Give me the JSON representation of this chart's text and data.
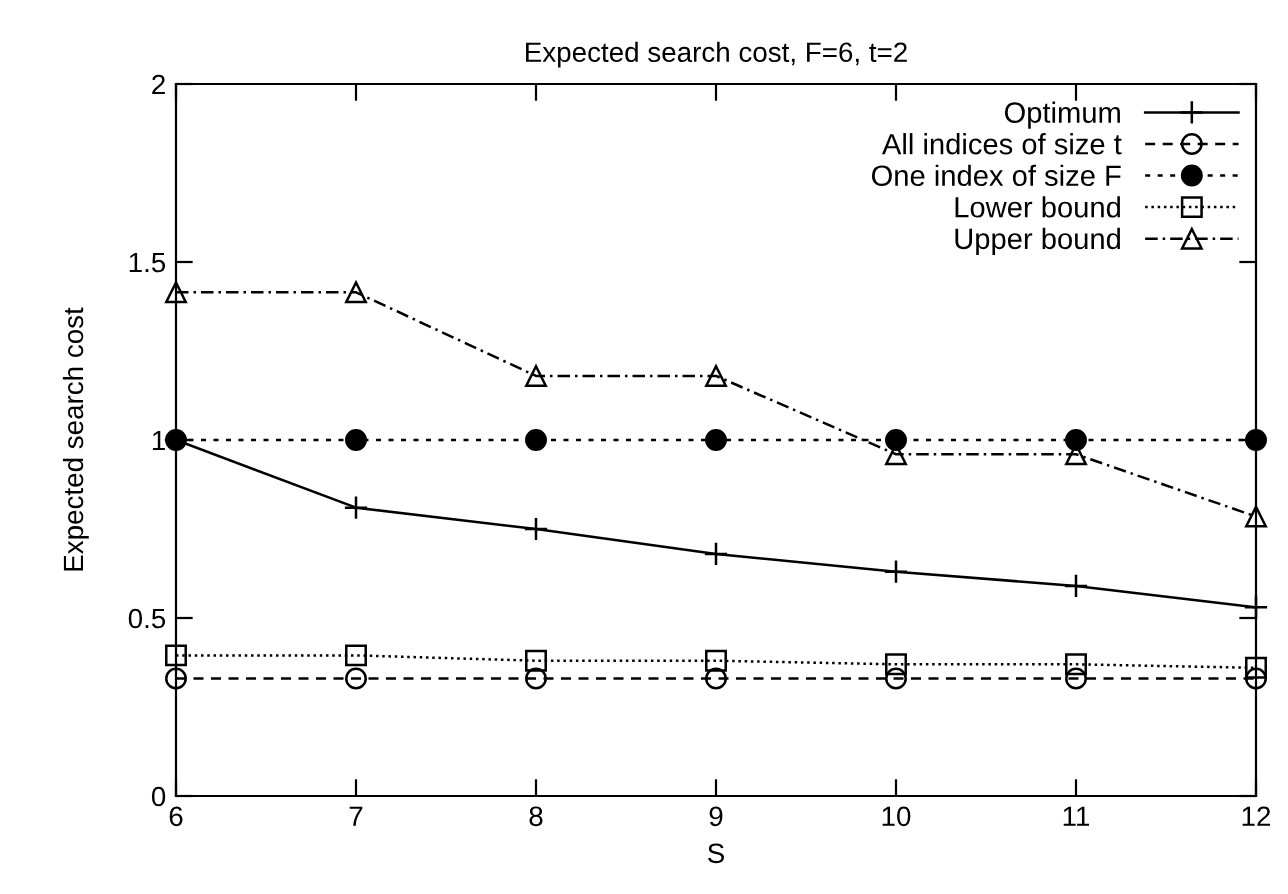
{
  "chart_data": {
    "type": "line",
    "title": "Expected search cost, F=6, t=2",
    "xlabel": "S",
    "ylabel": "Expected search cost",
    "x": [
      6,
      7,
      8,
      9,
      10,
      11,
      12
    ],
    "xlim": [
      6,
      12
    ],
    "xticks": [
      6,
      7,
      8,
      9,
      10,
      11,
      12
    ],
    "ylim": [
      0,
      2
    ],
    "yticks": [
      0,
      0.5,
      1,
      1.5,
      2
    ],
    "grid": false,
    "legend": "top right",
    "series": [
      {
        "name": "Optimum",
        "color": "#000000",
        "marker": "cross",
        "line_style": "solid",
        "values": [
          1.0,
          0.81,
          0.75,
          0.68,
          0.63,
          0.59,
          0.53
        ]
      },
      {
        "name": "All indices of size t",
        "color": "#000000",
        "marker": "circle",
        "line_style": "dashed",
        "values": [
          0.33,
          0.33,
          0.33,
          0.33,
          0.33,
          0.33,
          0.33
        ]
      },
      {
        "name": "One index of size F",
        "color": "#000000",
        "marker": "filled circle",
        "line_style": "densedash",
        "values": [
          1.0,
          1.0,
          1.0,
          1.0,
          1.0,
          1.0,
          1.0
        ]
      },
      {
        "name": "Lower bound",
        "color": "#000000",
        "marker": "square",
        "line_style": "dotted",
        "values": [
          0.395,
          0.395,
          0.38,
          0.38,
          0.37,
          0.37,
          0.36
        ]
      },
      {
        "name": "Upper bound",
        "color": "#000000",
        "marker": "triangle",
        "line_style": "dashdot",
        "values": [
          1.415,
          1.415,
          1.18,
          1.18,
          0.96,
          0.96,
          0.785
        ]
      }
    ]
  }
}
